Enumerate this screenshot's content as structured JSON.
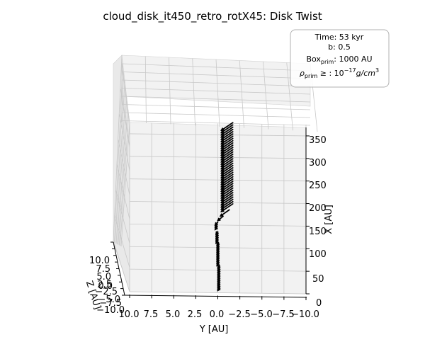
{
  "chart_data": {
    "type": "quiver3d",
    "title": "cloud_disk_it450_retro_rotX45: Disk Twist",
    "xlabel": "X [AU]",
    "ylabel": "Y [AU]",
    "zlabel": "Z [AU]",
    "xlim": [
      0,
      375
    ],
    "ylim": [
      10.0,
      -10.0
    ],
    "zlim": [
      -10.0,
      10.0
    ],
    "x_ticks": [
      "0",
      "50",
      "100",
      "150",
      "200",
      "250",
      "300",
      "350"
    ],
    "y_ticks": [
      "10.0",
      "7.5",
      "5.0",
      "2.5",
      "0.0",
      "−2.5",
      "−5.0",
      "−7.5",
      "−10.0"
    ],
    "z_ticks": [
      "10.0",
      "7.5",
      "5.0",
      "2.5",
      "0.0",
      "−2.5",
      "−5.0",
      "−7.5",
      "−10.0"
    ],
    "grid": true,
    "legend_placement": "top-right",
    "legend": {
      "time": "Time: 53 kyr",
      "b": "b: 0.5",
      "box_prefix": "Box",
      "box_sub": "prim",
      "box_suffix": ": 1000 AU",
      "rho_symbol": "ρ",
      "rho_sub": "prim",
      "rho_rel": " ≥ : 10",
      "rho_exp": "−17",
      "rho_unit": "g/cm",
      "rho_unit_exp": "3"
    },
    "arrow_color": "#000000",
    "arrows": [
      {
        "x": 5,
        "y": 0.0,
        "dy": -0.2
      },
      {
        "x": 8,
        "y": 0.0,
        "dy": -0.2
      },
      {
        "x": 12,
        "y": 0.0,
        "dy": -0.2
      },
      {
        "x": 16,
        "y": 0.0,
        "dy": -0.2
      },
      {
        "x": 20,
        "y": 0.0,
        "dy": -0.2
      },
      {
        "x": 25,
        "y": 0.0,
        "dy": -0.2
      },
      {
        "x": 30,
        "y": 0.0,
        "dy": -0.2
      },
      {
        "x": 35,
        "y": 0.0,
        "dy": -0.2
      },
      {
        "x": 40,
        "y": 0.0,
        "dy": -0.2
      },
      {
        "x": 45,
        "y": 0.0,
        "dy": -0.2
      },
      {
        "x": 50,
        "y": 0.0,
        "dy": -0.2
      },
      {
        "x": 55,
        "y": 0.0,
        "dy": -0.2
      },
      {
        "x": 60,
        "y": 0.1,
        "dy": -0.2
      },
      {
        "x": 65,
        "y": 0.1,
        "dy": -0.2
      },
      {
        "x": 70,
        "y": 0.1,
        "dy": -0.2
      },
      {
        "x": 75,
        "y": 0.1,
        "dy": -0.2
      },
      {
        "x": 80,
        "y": 0.1,
        "dy": -0.2
      },
      {
        "x": 85,
        "y": 0.1,
        "dy": -0.2
      },
      {
        "x": 90,
        "y": 0.1,
        "dy": -0.2
      },
      {
        "x": 95,
        "y": 0.1,
        "dy": -0.2
      },
      {
        "x": 100,
        "y": 0.1,
        "dy": -0.2
      },
      {
        "x": 105,
        "y": 0.1,
        "dy": -0.2
      },
      {
        "x": 110,
        "y": 0.2,
        "dy": -0.2
      },
      {
        "x": 115,
        "y": 0.2,
        "dy": -0.2
      },
      {
        "x": 120,
        "y": 0.2,
        "dy": -0.2
      },
      {
        "x": 125,
        "y": 0.2,
        "dy": -0.2
      },
      {
        "x": 130,
        "y": 0.2,
        "dy": -0.2
      },
      {
        "x": 140,
        "y": 0.3,
        "dy": -0.2
      },
      {
        "x": 145,
        "y": 0.3,
        "dy": -0.2
      },
      {
        "x": 150,
        "y": 0.3,
        "dy": -0.3
      },
      {
        "x": 160,
        "y": 0.0,
        "dy": -0.6
      },
      {
        "x": 170,
        "y": -0.3,
        "dy": -1.0
      },
      {
        "x": 180,
        "y": -0.4,
        "dy": -1.3
      },
      {
        "x": 185,
        "y": -0.4,
        "dy": -1.3
      },
      {
        "x": 190,
        "y": -0.4,
        "dy": -1.3
      },
      {
        "x": 195,
        "y": -0.4,
        "dy": -1.3
      },
      {
        "x": 200,
        "y": -0.4,
        "dy": -1.3
      },
      {
        "x": 205,
        "y": -0.4,
        "dy": -1.3
      },
      {
        "x": 210,
        "y": -0.4,
        "dy": -1.3
      },
      {
        "x": 215,
        "y": -0.4,
        "dy": -1.3
      },
      {
        "x": 220,
        "y": -0.4,
        "dy": -1.3
      },
      {
        "x": 225,
        "y": -0.4,
        "dy": -1.3
      },
      {
        "x": 230,
        "y": -0.4,
        "dy": -1.3
      },
      {
        "x": 235,
        "y": -0.4,
        "dy": -1.3
      },
      {
        "x": 240,
        "y": -0.4,
        "dy": -1.3
      },
      {
        "x": 245,
        "y": -0.4,
        "dy": -1.3
      },
      {
        "x": 250,
        "y": -0.4,
        "dy": -1.3
      },
      {
        "x": 255,
        "y": -0.4,
        "dy": -1.3
      },
      {
        "x": 260,
        "y": -0.4,
        "dy": -1.3
      },
      {
        "x": 265,
        "y": -0.4,
        "dy": -1.3
      },
      {
        "x": 270,
        "y": -0.4,
        "dy": -1.3
      },
      {
        "x": 275,
        "y": -0.4,
        "dy": -1.3
      },
      {
        "x": 280,
        "y": -0.4,
        "dy": -1.3
      },
      {
        "x": 285,
        "y": -0.4,
        "dy": -1.3
      },
      {
        "x": 290,
        "y": -0.4,
        "dy": -1.3
      },
      {
        "x": 295,
        "y": -0.4,
        "dy": -1.3
      },
      {
        "x": 300,
        "y": -0.4,
        "dy": -1.3
      },
      {
        "x": 305,
        "y": -0.4,
        "dy": -1.3
      },
      {
        "x": 310,
        "y": -0.4,
        "dy": -1.3
      },
      {
        "x": 315,
        "y": -0.4,
        "dy": -1.3
      },
      {
        "x": 320,
        "y": -0.4,
        "dy": -1.3
      },
      {
        "x": 325,
        "y": -0.4,
        "dy": -1.3
      },
      {
        "x": 330,
        "y": -0.4,
        "dy": -1.3
      },
      {
        "x": 335,
        "y": -0.4,
        "dy": -1.3
      },
      {
        "x": 340,
        "y": -0.4,
        "dy": -1.3
      },
      {
        "x": 345,
        "y": -0.4,
        "dy": -1.3
      },
      {
        "x": 350,
        "y": -0.4,
        "dy": -1.3
      },
      {
        "x": 355,
        "y": -0.4,
        "dy": -1.3
      },
      {
        "x": 360,
        "y": -0.4,
        "dy": -1.3
      }
    ]
  }
}
